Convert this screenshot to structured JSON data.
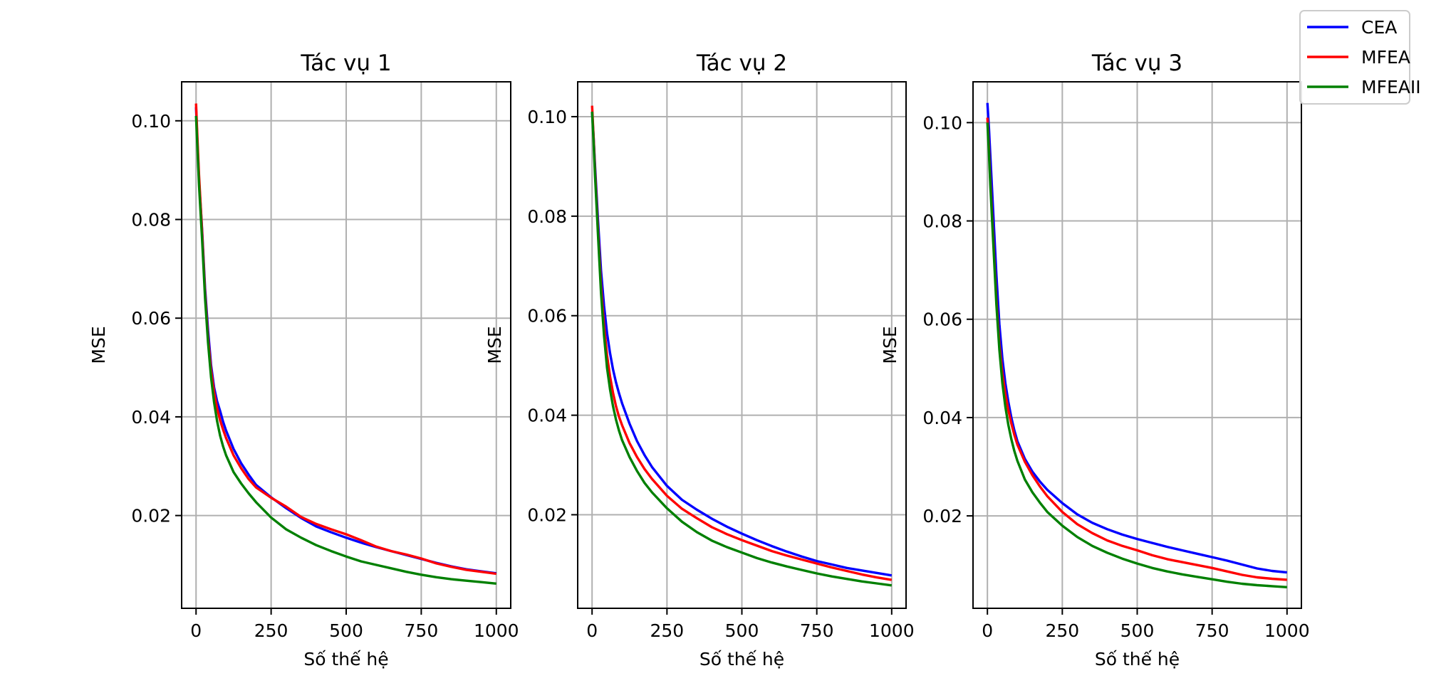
{
  "chart_data": [
    {
      "type": "line",
      "title": "Tác vụ 1",
      "xlabel": "Số thế hệ",
      "ylabel": "MSE",
      "xlim": [
        -48,
        1048
      ],
      "ylim": [
        0.0012,
        0.1079
      ],
      "xticks": [
        0,
        250,
        500,
        750,
        1000
      ],
      "xtick_labels": [
        "0",
        "250",
        "500",
        "750",
        "1000"
      ],
      "yticks": [
        0.02,
        0.04,
        0.06,
        0.08,
        0.1
      ],
      "ytick_labels": [
        "0.02",
        "0.04",
        "0.06",
        "0.08",
        "0.10"
      ],
      "grid": true,
      "series": [
        {
          "name": "CEA",
          "color": "#0000ff",
          "x": [
            0,
            5,
            10,
            20,
            30,
            40,
            50,
            60,
            70,
            80,
            90,
            100,
            125,
            150,
            175,
            200,
            250,
            300,
            350,
            400,
            450,
            500,
            550,
            600,
            650,
            700,
            750,
            800,
            850,
            900,
            950,
            1000
          ],
          "y": [
            0.1028,
            0.095,
            0.088,
            0.078,
            0.066,
            0.0575,
            0.0505,
            0.046,
            0.0432,
            0.0412,
            0.039,
            0.0372,
            0.0335,
            0.0306,
            0.0283,
            0.0262,
            0.0237,
            0.0215,
            0.0195,
            0.0178,
            0.0166,
            0.0155,
            0.0145,
            0.0136,
            0.0128,
            0.012,
            0.0112,
            0.0104,
            0.0097,
            0.0091,
            0.0087,
            0.0083
          ]
        },
        {
          "name": "MFEA",
          "color": "#ff0000",
          "x": [
            0,
            5,
            10,
            20,
            30,
            40,
            50,
            60,
            70,
            80,
            90,
            100,
            125,
            150,
            175,
            200,
            250,
            300,
            350,
            400,
            450,
            500,
            550,
            600,
            650,
            700,
            750,
            800,
            850,
            900,
            950,
            1000
          ],
          "y": [
            0.1035,
            0.096,
            0.089,
            0.0775,
            0.065,
            0.056,
            0.0495,
            0.045,
            0.0418,
            0.0393,
            0.0374,
            0.0357,
            0.0322,
            0.0296,
            0.0274,
            0.0257,
            0.0236,
            0.0218,
            0.0197,
            0.0183,
            0.0172,
            0.0162,
            0.015,
            0.0137,
            0.0128,
            0.0121,
            0.0113,
            0.0103,
            0.0096,
            0.009,
            0.0086,
            0.0082
          ]
        },
        {
          "name": "MFEAII",
          "color": "#008000",
          "x": [
            0,
            5,
            10,
            20,
            30,
            40,
            50,
            60,
            70,
            80,
            90,
            100,
            125,
            150,
            175,
            200,
            250,
            300,
            350,
            400,
            450,
            500,
            550,
            600,
            650,
            700,
            750,
            800,
            850,
            900,
            950,
            1000
          ],
          "y": [
            0.101,
            0.094,
            0.087,
            0.076,
            0.064,
            0.055,
            0.048,
            0.043,
            0.0392,
            0.0362,
            0.034,
            0.0322,
            0.0288,
            0.0265,
            0.0245,
            0.0227,
            0.0196,
            0.0172,
            0.0155,
            0.014,
            0.0128,
            0.0117,
            0.0107,
            0.01,
            0.0093,
            0.0086,
            0.008,
            0.0075,
            0.0071,
            0.0068,
            0.0065,
            0.0062
          ]
        }
      ]
    },
    {
      "type": "line",
      "title": "Tác vụ 2",
      "xlabel": "Số thế hệ",
      "ylabel": "MSE",
      "xlim": [
        -48,
        1048
      ],
      "ylim": [
        0.0012,
        0.107
      ],
      "xticks": [
        0,
        250,
        500,
        750,
        1000
      ],
      "xtick_labels": [
        "0",
        "250",
        "500",
        "750",
        "1000"
      ],
      "yticks": [
        0.02,
        0.04,
        0.06,
        0.08,
        0.1
      ],
      "ytick_labels": [
        "0.02",
        "0.04",
        "0.06",
        "0.08",
        "0.10"
      ],
      "grid": true,
      "series": [
        {
          "name": "CEA",
          "color": "#0000ff",
          "x": [
            0,
            5,
            10,
            20,
            30,
            40,
            50,
            60,
            70,
            80,
            90,
            100,
            125,
            150,
            175,
            200,
            250,
            300,
            350,
            400,
            450,
            500,
            550,
            600,
            650,
            700,
            750,
            800,
            850,
            900,
            950,
            1000
          ],
          "y": [
            0.101,
            0.096,
            0.09,
            0.079,
            0.069,
            0.062,
            0.0565,
            0.0525,
            0.0492,
            0.0466,
            0.0444,
            0.0424,
            0.0383,
            0.0348,
            0.032,
            0.0296,
            0.0258,
            0.023,
            0.021,
            0.0192,
            0.0176,
            0.0162,
            0.0149,
            0.0137,
            0.0126,
            0.0116,
            0.0107,
            0.01,
            0.0093,
            0.0088,
            0.0083,
            0.0078
          ]
        },
        {
          "name": "MFEA",
          "color": "#ff0000",
          "x": [
            0,
            5,
            10,
            20,
            30,
            40,
            50,
            60,
            70,
            80,
            90,
            100,
            125,
            150,
            175,
            200,
            250,
            300,
            350,
            400,
            450,
            500,
            550,
            600,
            650,
            700,
            750,
            800,
            850,
            900,
            950,
            1000
          ],
          "y": [
            0.1022,
            0.096,
            0.089,
            0.077,
            0.066,
            0.058,
            0.052,
            0.0478,
            0.0445,
            0.0418,
            0.0397,
            0.038,
            0.0344,
            0.0316,
            0.0292,
            0.0272,
            0.0238,
            0.0212,
            0.0193,
            0.0175,
            0.0161,
            0.0149,
            0.0138,
            0.0127,
            0.0118,
            0.011,
            0.0102,
            0.0094,
            0.0087,
            0.008,
            0.0074,
            0.0069
          ]
        },
        {
          "name": "MFEAII",
          "color": "#008000",
          "x": [
            0,
            5,
            10,
            20,
            30,
            40,
            50,
            60,
            70,
            80,
            90,
            100,
            125,
            150,
            175,
            200,
            250,
            300,
            350,
            400,
            450,
            500,
            550,
            600,
            650,
            700,
            750,
            800,
            850,
            900,
            950,
            1000
          ],
          "y": [
            0.101,
            0.095,
            0.088,
            0.076,
            0.0645,
            0.056,
            0.0495,
            0.0452,
            0.0418,
            0.0391,
            0.0369,
            0.035,
            0.0316,
            0.0288,
            0.0264,
            0.0245,
            0.0213,
            0.0186,
            0.0165,
            0.0148,
            0.0135,
            0.0124,
            0.0113,
            0.0104,
            0.0096,
            0.0089,
            0.0082,
            0.0076,
            0.0071,
            0.0066,
            0.0062,
            0.0058
          ]
        }
      ]
    },
    {
      "type": "line",
      "title": "Tác vụ 3",
      "xlabel": "Số thế hệ",
      "ylabel": "MSE",
      "xlim": [
        -48,
        1048
      ],
      "ylim": [
        0.0012,
        0.1083
      ],
      "xticks": [
        0,
        250,
        500,
        750,
        1000
      ],
      "xtick_labels": [
        "0",
        "250",
        "500",
        "750",
        "1000"
      ],
      "yticks": [
        0.02,
        0.04,
        0.06,
        0.08,
        0.1
      ],
      "ytick_labels": [
        "0.02",
        "0.04",
        "0.06",
        "0.08",
        "0.10"
      ],
      "grid": true,
      "series": [
        {
          "name": "CEA",
          "color": "#0000ff",
          "x": [
            0,
            5,
            10,
            20,
            30,
            40,
            50,
            60,
            70,
            80,
            90,
            100,
            125,
            150,
            175,
            200,
            250,
            300,
            350,
            400,
            450,
            500,
            550,
            600,
            650,
            700,
            750,
            800,
            850,
            900,
            950,
            1000
          ],
          "y": [
            0.104,
            0.099,
            0.093,
            0.081,
            0.069,
            0.059,
            0.052,
            0.047,
            0.0432,
            0.04,
            0.0374,
            0.0352,
            0.0316,
            0.029,
            0.027,
            0.0253,
            0.0226,
            0.0203,
            0.0186,
            0.0173,
            0.0162,
            0.0153,
            0.0145,
            0.0137,
            0.013,
            0.0123,
            0.0116,
            0.0109,
            0.0101,
            0.0093,
            0.0088,
            0.0085
          ]
        },
        {
          "name": "MFEA",
          "color": "#ff0000",
          "x": [
            0,
            5,
            10,
            20,
            30,
            40,
            50,
            60,
            70,
            80,
            90,
            100,
            125,
            150,
            175,
            200,
            250,
            300,
            350,
            400,
            450,
            500,
            550,
            600,
            650,
            700,
            750,
            800,
            850,
            900,
            950,
            1000
          ],
          "y": [
            0.101,
            0.095,
            0.088,
            0.076,
            0.064,
            0.055,
            0.049,
            0.0448,
            0.0415,
            0.0388,
            0.0365,
            0.0345,
            0.031,
            0.0283,
            0.026,
            0.024,
            0.0208,
            0.0183,
            0.0165,
            0.015,
            0.0139,
            0.013,
            0.012,
            0.0112,
            0.0106,
            0.01,
            0.0094,
            0.0087,
            0.008,
            0.0075,
            0.0072,
            0.007
          ]
        },
        {
          "name": "MFEAII",
          "color": "#008000",
          "x": [
            0,
            5,
            10,
            20,
            30,
            40,
            50,
            60,
            70,
            80,
            90,
            100,
            125,
            150,
            175,
            200,
            250,
            300,
            350,
            400,
            450,
            500,
            550,
            600,
            650,
            700,
            750,
            800,
            850,
            900,
            950,
            1000
          ],
          "y": [
            0.1,
            0.094,
            0.087,
            0.075,
            0.063,
            0.0538,
            0.047,
            0.0422,
            0.0385,
            0.0356,
            0.0332,
            0.0312,
            0.0274,
            0.0248,
            0.0227,
            0.0208,
            0.018,
            0.0157,
            0.0139,
            0.0125,
            0.0113,
            0.0103,
            0.0094,
            0.0087,
            0.0081,
            0.0076,
            0.0071,
            0.0066,
            0.0062,
            0.0059,
            0.0057,
            0.0055
          ]
        }
      ]
    }
  ],
  "legend": {
    "placement": "top-right",
    "entries": [
      {
        "label": "CEA",
        "color": "#0000ff"
      },
      {
        "label": "MFEA",
        "color": "#ff0000"
      },
      {
        "label": "MFEAII",
        "color": "#008000"
      }
    ]
  }
}
